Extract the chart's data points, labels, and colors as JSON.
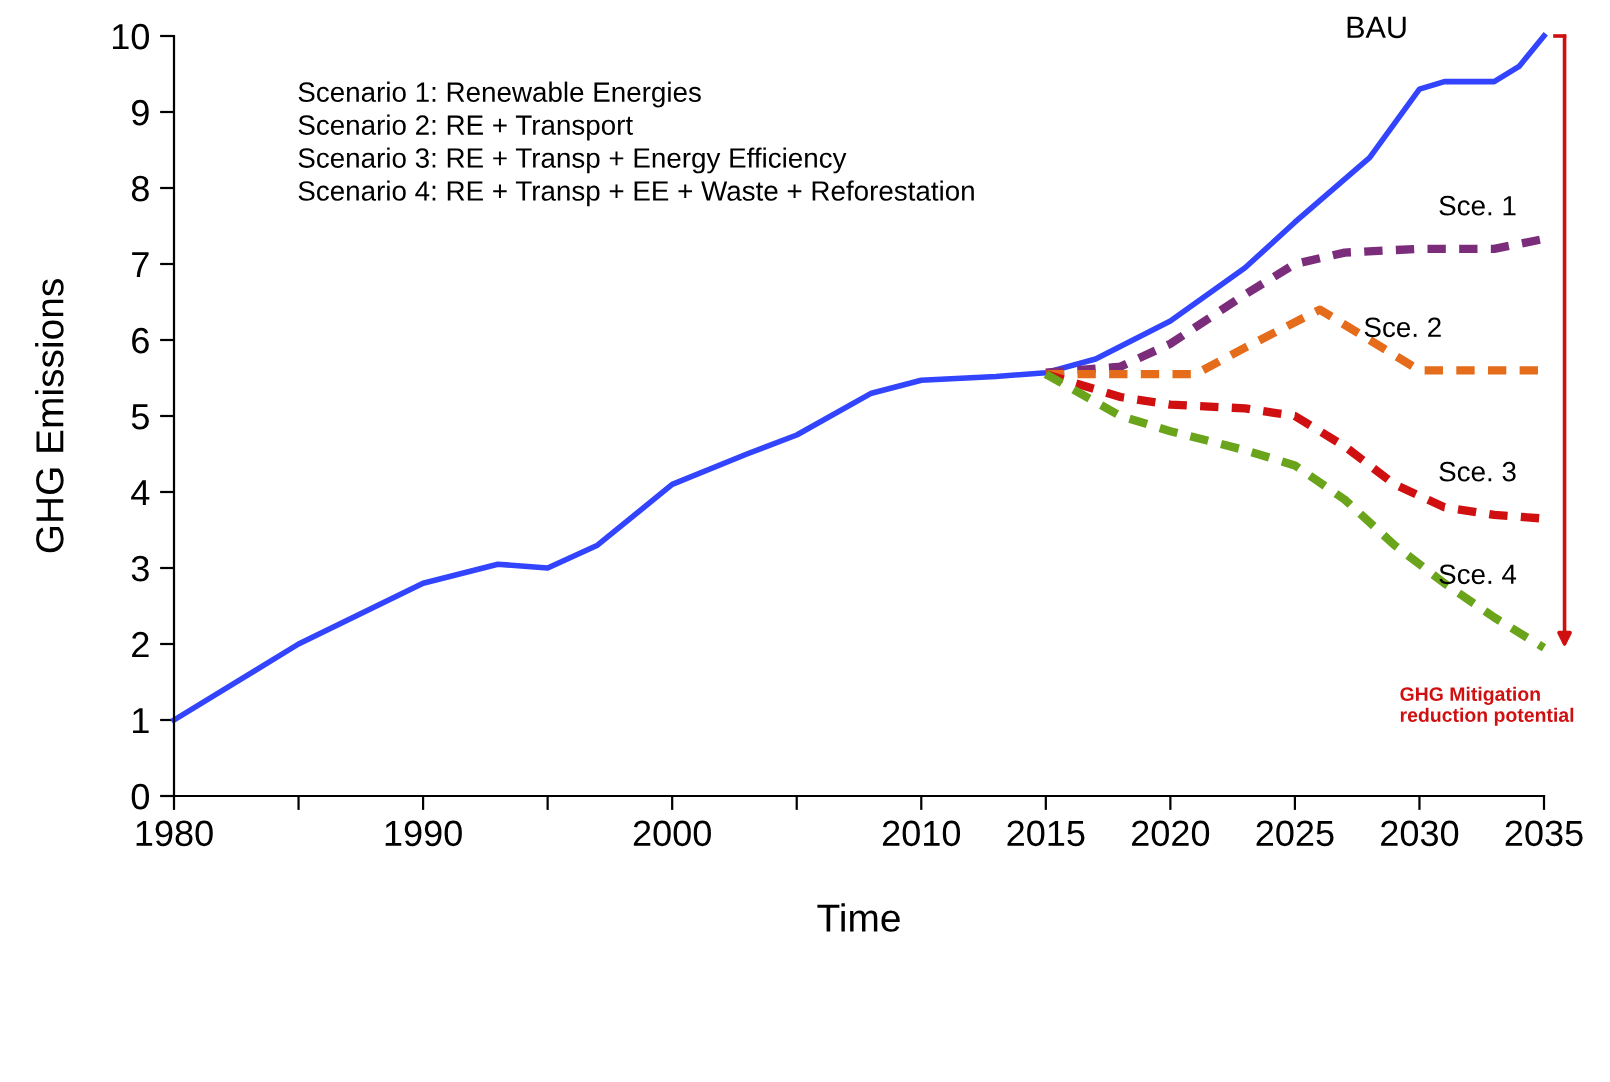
{
  "chart_data": {
    "type": "line",
    "xlabel": "Time",
    "ylabel": "GHG Emissions",
    "xlim": [
      1980,
      2035
    ],
    "ylim": [
      0,
      10
    ],
    "xticks": [
      1980,
      {
        "value": 1985,
        "label": null
      },
      1990,
      {
        "value": 1995,
        "label": null
      },
      2000,
      {
        "value": 2005,
        "label": null
      },
      2010,
      2015,
      2020,
      2025,
      2030,
      2035
    ],
    "yticks": [
      0,
      1,
      2,
      3,
      4,
      5,
      6,
      7,
      8,
      9,
      10
    ],
    "grid": false,
    "legend": false,
    "series": [
      {
        "name": "BAU",
        "color": "#3344ff",
        "line_style": "solid",
        "x": [
          1980,
          1985,
          1990,
          1993,
          1995,
          1997,
          2000,
          2003,
          2005,
          2008,
          2010,
          2013,
          2015,
          2017,
          2020,
          2023,
          2025,
          2028,
          2030,
          2031,
          2033,
          2034,
          2035
        ],
        "values": [
          1.0,
          2.0,
          2.8,
          3.05,
          3.0,
          3.3,
          4.1,
          4.5,
          4.75,
          5.3,
          5.47,
          5.52,
          5.57,
          5.75,
          6.25,
          6.95,
          7.55,
          8.4,
          9.3,
          9.4,
          9.4,
          9.6,
          10.0
        ]
      },
      {
        "name": "Sce. 1",
        "color": "#7b2d7b",
        "line_style": "dashed",
        "x": [
          2015,
          2018,
          2020,
          2023,
          2025,
          2027,
          2030,
          2033,
          2035
        ],
        "values": [
          5.57,
          5.65,
          5.95,
          6.6,
          7.0,
          7.15,
          7.2,
          7.2,
          7.33
        ]
      },
      {
        "name": "Sce. 2",
        "color": "#e46c1a",
        "line_style": "dashed",
        "x": [
          2015,
          2018,
          2021,
          2023,
          2026,
          2028,
          2030,
          2035
        ],
        "values": [
          5.55,
          5.55,
          5.55,
          5.9,
          6.4,
          6.0,
          5.6,
          5.6
        ]
      },
      {
        "name": "Sce. 3",
        "color": "#d01010",
        "line_style": "dashed",
        "x": [
          2015,
          2018,
          2020,
          2023,
          2025,
          2027,
          2029,
          2031,
          2033,
          2035
        ],
        "values": [
          5.55,
          5.25,
          5.15,
          5.1,
          5.0,
          4.6,
          4.1,
          3.8,
          3.7,
          3.65
        ]
      },
      {
        "name": "Sce. 4",
        "color": "#6aa41a",
        "line_style": "dashed",
        "x": [
          2015,
          2018,
          2020,
          2023,
          2025,
          2027,
          2029,
          2031,
          2033,
          2035
        ],
        "values": [
          5.55,
          5.0,
          4.8,
          4.55,
          4.35,
          3.9,
          3.3,
          2.8,
          2.35,
          1.95
        ]
      }
    ],
    "annotations": [
      "Scenario 1: Renewable Energies\nScenario 2: RE + Transport\nScenario 3: RE + Transp + Energy Efficiency\nScenario 4: RE + Transp + EE + Waste + Reforestation",
      {
        "text": "GHG Mitigation\nreduction potential",
        "x": 2035,
        "y": 1.95
      }
    ]
  }
}
